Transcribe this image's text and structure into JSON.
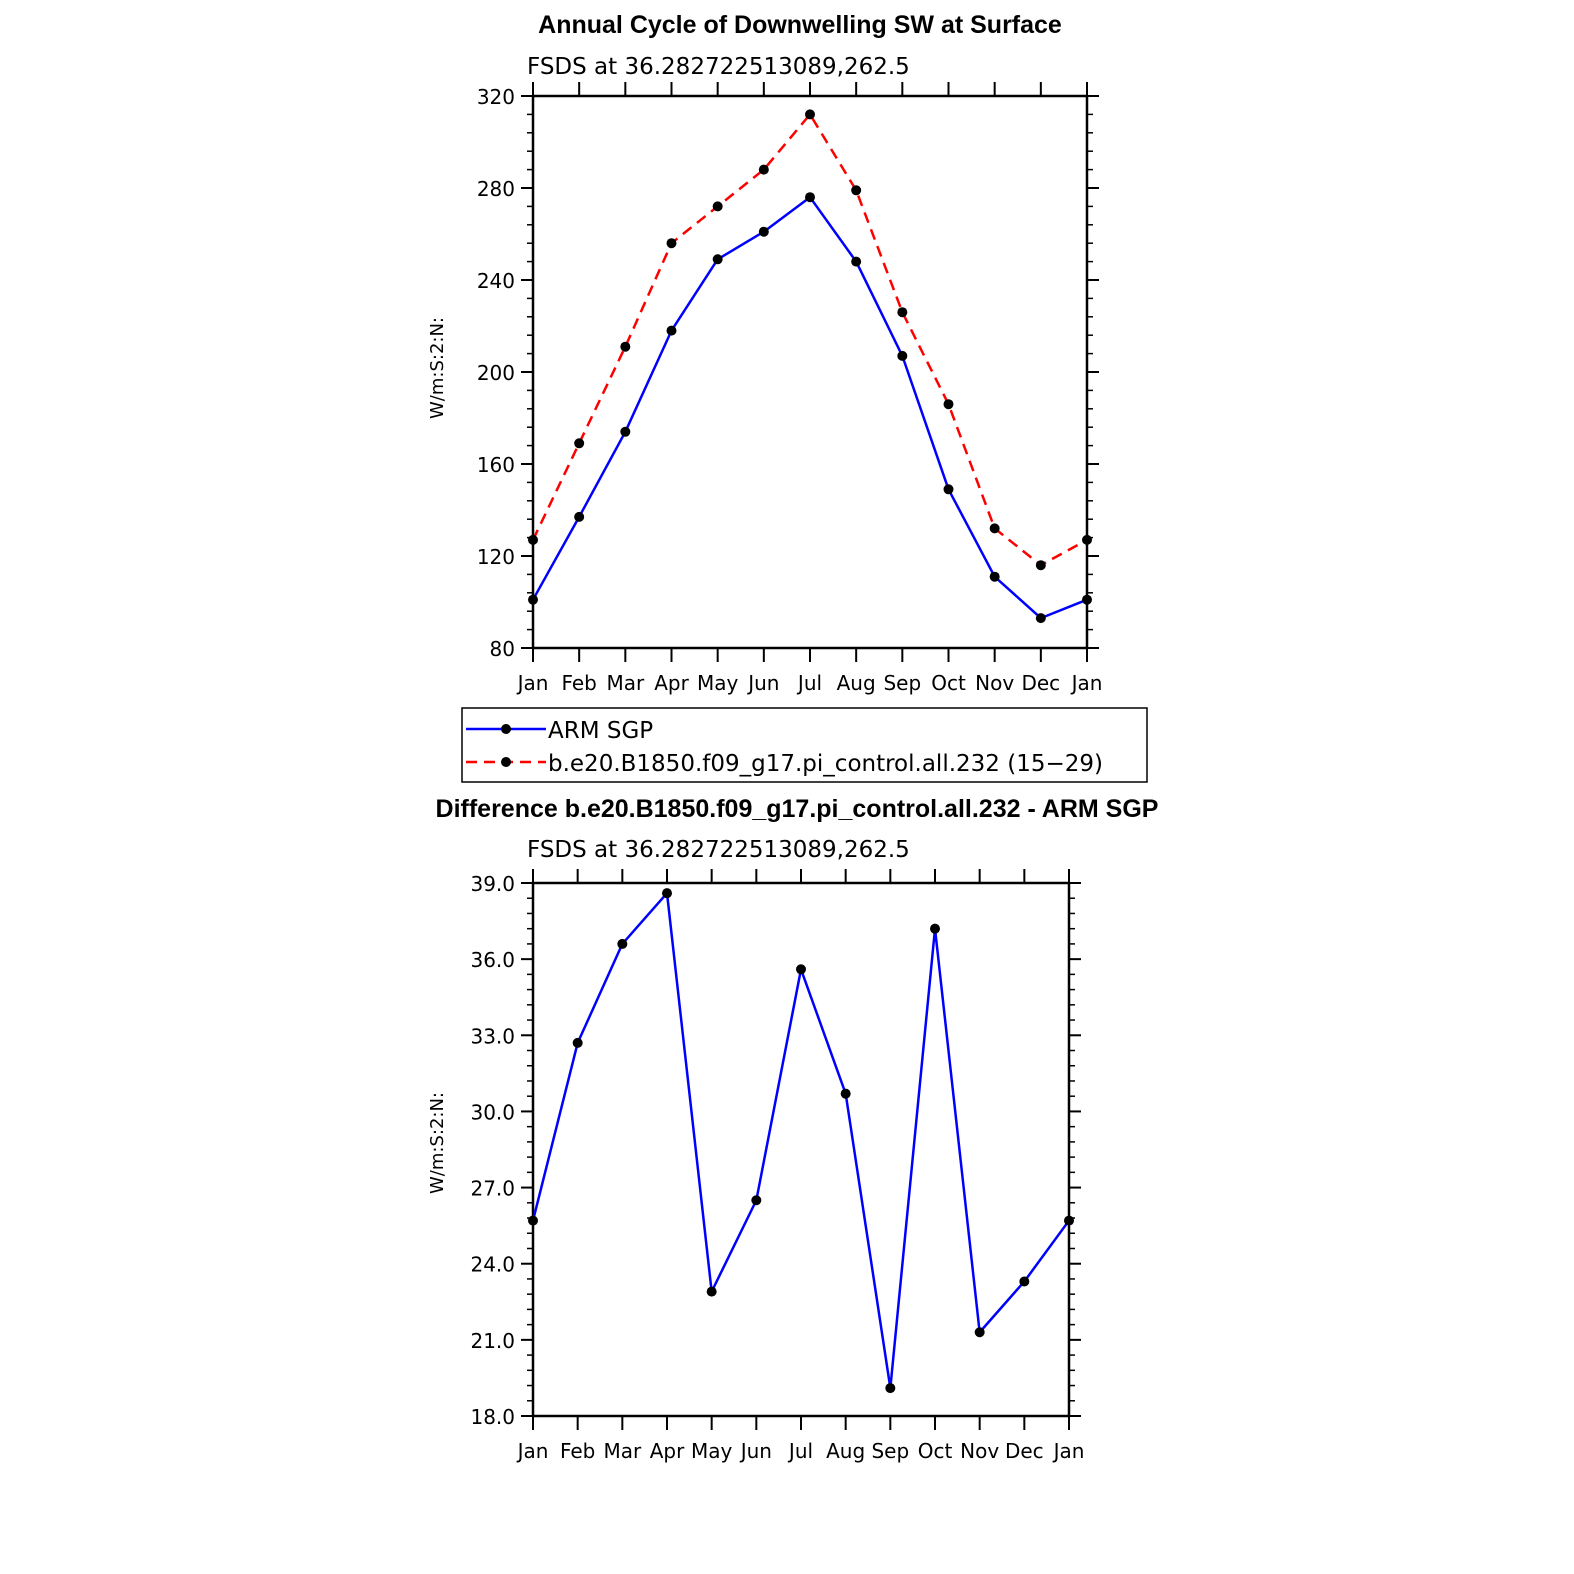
{
  "chart_data": [
    {
      "type": "line",
      "title": "Annual Cycle of Downwelling SW at Surface",
      "subtitle": "FSDS at 36.282722513089,262.5",
      "xlabel": "",
      "ylabel": "W/m:S:2:N:",
      "categories": [
        "Jan",
        "Feb",
        "Mar",
        "Apr",
        "May",
        "Jun",
        "Jul",
        "Aug",
        "Sep",
        "Oct",
        "Nov",
        "Dec",
        "Jan"
      ],
      "ylim": [
        80,
        320
      ],
      "yticks": [
        80,
        120,
        160,
        200,
        240,
        280,
        320
      ],
      "ytick_labels": [
        "80",
        "120",
        "160",
        "200",
        "240",
        "280",
        "320"
      ],
      "grid": false,
      "legend_position": "below",
      "series": [
        {
          "name": "ARM SGP",
          "color": "#0000ff",
          "dash": "solid",
          "values": [
            101,
            137,
            174,
            218,
            249,
            261,
            276,
            248,
            207,
            149,
            111,
            93,
            101
          ]
        },
        {
          "name": "b.e20.B1850.f09_g17.pi_control.all.232 (15−29)",
          "color": "#ff0000",
          "dash": "dashed",
          "values": [
            127,
            169,
            211,
            256,
            272,
            288,
            312,
            279,
            226,
            186,
            132,
            116,
            127
          ]
        }
      ]
    },
    {
      "type": "line",
      "title": "Difference b.e20.B1850.f09_g17.pi_control.all.232 - ARM SGP",
      "subtitle": "FSDS at 36.282722513089,262.5",
      "xlabel": "",
      "ylabel": "W/m:S:2:N:",
      "categories": [
        "Jan",
        "Feb",
        "Mar",
        "Apr",
        "May",
        "Jun",
        "Jul",
        "Aug",
        "Sep",
        "Oct",
        "Nov",
        "Dec",
        "Jan"
      ],
      "ylim": [
        18,
        39
      ],
      "yticks": [
        18,
        21,
        24,
        27,
        30,
        33,
        36,
        39
      ],
      "ytick_labels": [
        "18.0",
        "21.0",
        "24.0",
        "27.0",
        "30.0",
        "33.0",
        "36.0",
        "39.0"
      ],
      "grid": false,
      "series": [
        {
          "color": "#0000ff",
          "dash": "solid",
          "values": [
            25.7,
            32.7,
            36.6,
            38.6,
            22.9,
            26.5,
            35.6,
            30.7,
            19.1,
            37.2,
            21.3,
            23.3,
            25.7
          ]
        }
      ]
    }
  ]
}
